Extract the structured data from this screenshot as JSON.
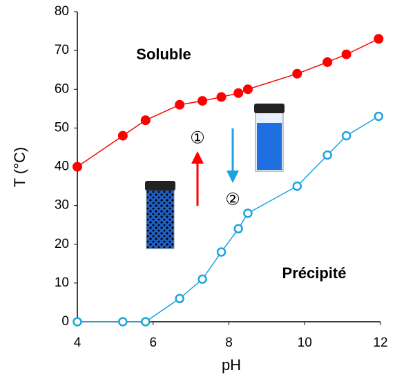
{
  "chart_data": {
    "type": "line",
    "x_label": "pH",
    "y_label": "T (°C)",
    "x": [
      4,
      5.2,
      5.8,
      6.7,
      7.3,
      7.8,
      8.25,
      8.5,
      9.8,
      10.6,
      11.1,
      11.95
    ],
    "series": [
      {
        "color": "#ff0000",
        "marker_fill": true,
        "values": [
          40,
          48,
          52,
          56,
          57,
          58,
          59,
          60,
          64,
          67,
          69,
          73
        ]
      },
      {
        "color": "#1aa3e0",
        "marker_fill": false,
        "values": [
          0,
          0,
          0,
          6,
          11,
          18,
          24,
          28,
          35,
          43,
          48,
          53
        ]
      }
    ],
    "xlim": [
      4,
      12
    ],
    "xticks": [
      4,
      6,
      8,
      10,
      12
    ],
    "ylim": [
      0,
      80
    ],
    "yticks": [
      0,
      10,
      20,
      30,
      40,
      50,
      60,
      70,
      80
    ],
    "annotations": [
      "Soluble",
      "Précipité",
      "①",
      "②"
    ]
  }
}
